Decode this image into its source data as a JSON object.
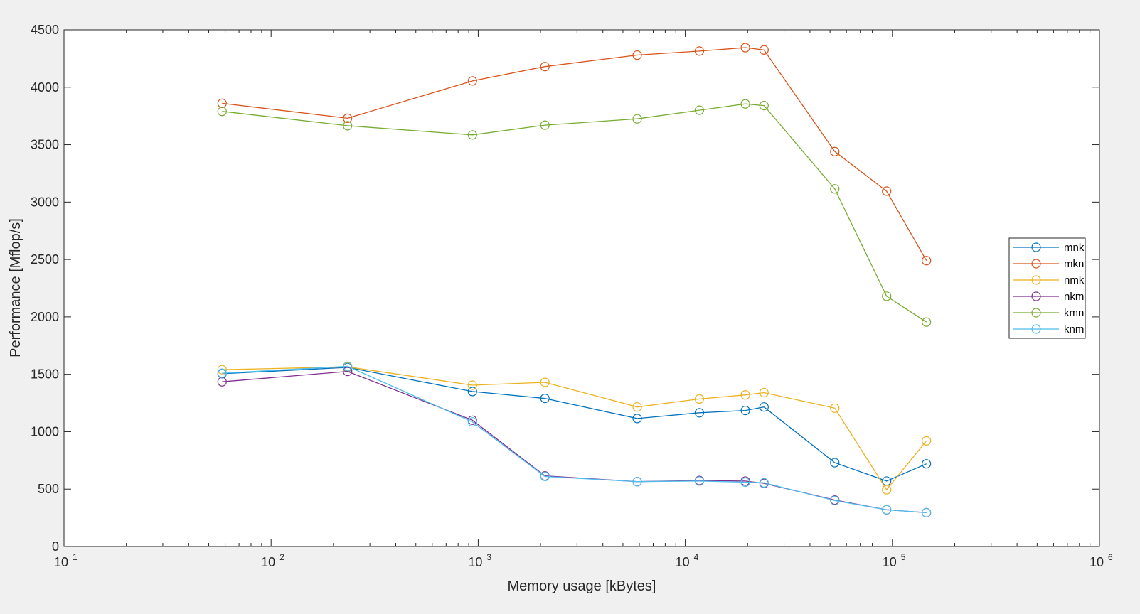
{
  "chart_data": {
    "type": "line",
    "xscale": "log",
    "xlim": [
      10,
      1000000
    ],
    "ylim": [
      0,
      4500
    ],
    "xlabel": "Memory usage [kBytes]",
    "ylabel": "Performance [Mflop/s]",
    "yticks": [
      0,
      500,
      1000,
      1500,
      2000,
      2500,
      3000,
      3500,
      4000,
      4500
    ],
    "xticks": [
      {
        "value": 10,
        "base": "10",
        "exp": "1"
      },
      {
        "value": 100,
        "base": "10",
        "exp": "2"
      },
      {
        "value": 1000,
        "base": "10",
        "exp": "3"
      },
      {
        "value": 10000,
        "base": "10",
        "exp": "4"
      },
      {
        "value": 100000,
        "base": "10",
        "exp": "5"
      },
      {
        "value": 1000000,
        "base": "10",
        "exp": "6"
      }
    ],
    "grid": false,
    "legend_position": "right",
    "marker": "circle",
    "x": [
      58,
      234,
      938,
      2100,
      5860,
      11700,
      19500,
      24000,
      52700,
      93800,
      146000
    ],
    "series": [
      {
        "name": "mnk",
        "color": "#0072BD",
        "values": [
          1505,
          1560,
          1350,
          1290,
          1115,
          1165,
          1185,
          1215,
          730,
          570,
          720
        ]
      },
      {
        "name": "mkn",
        "color": "#D95319",
        "values": [
          3860,
          3730,
          4055,
          4180,
          4280,
          4315,
          4345,
          4325,
          3440,
          3095,
          2490
        ]
      },
      {
        "name": "nmk",
        "color": "#EDB120",
        "values": [
          1540,
          1565,
          1405,
          1430,
          1215,
          1285,
          1320,
          1340,
          1205,
          495,
          920
        ]
      },
      {
        "name": "nkm",
        "color": "#7E2F8E",
        "values": [
          1435,
          1525,
          1100,
          615,
          565,
          575,
          570,
          550,
          405,
          320,
          295
        ]
      },
      {
        "name": "kmn",
        "color": "#77AC30",
        "values": [
          3790,
          3665,
          3585,
          3670,
          3725,
          3800,
          3855,
          3840,
          3115,
          2180,
          1955
        ]
      },
      {
        "name": "knm",
        "color": "#4DBEEE",
        "values": [
          1510,
          1570,
          1085,
          610,
          565,
          570,
          560,
          555,
          400,
          320,
          295
        ]
      }
    ]
  }
}
